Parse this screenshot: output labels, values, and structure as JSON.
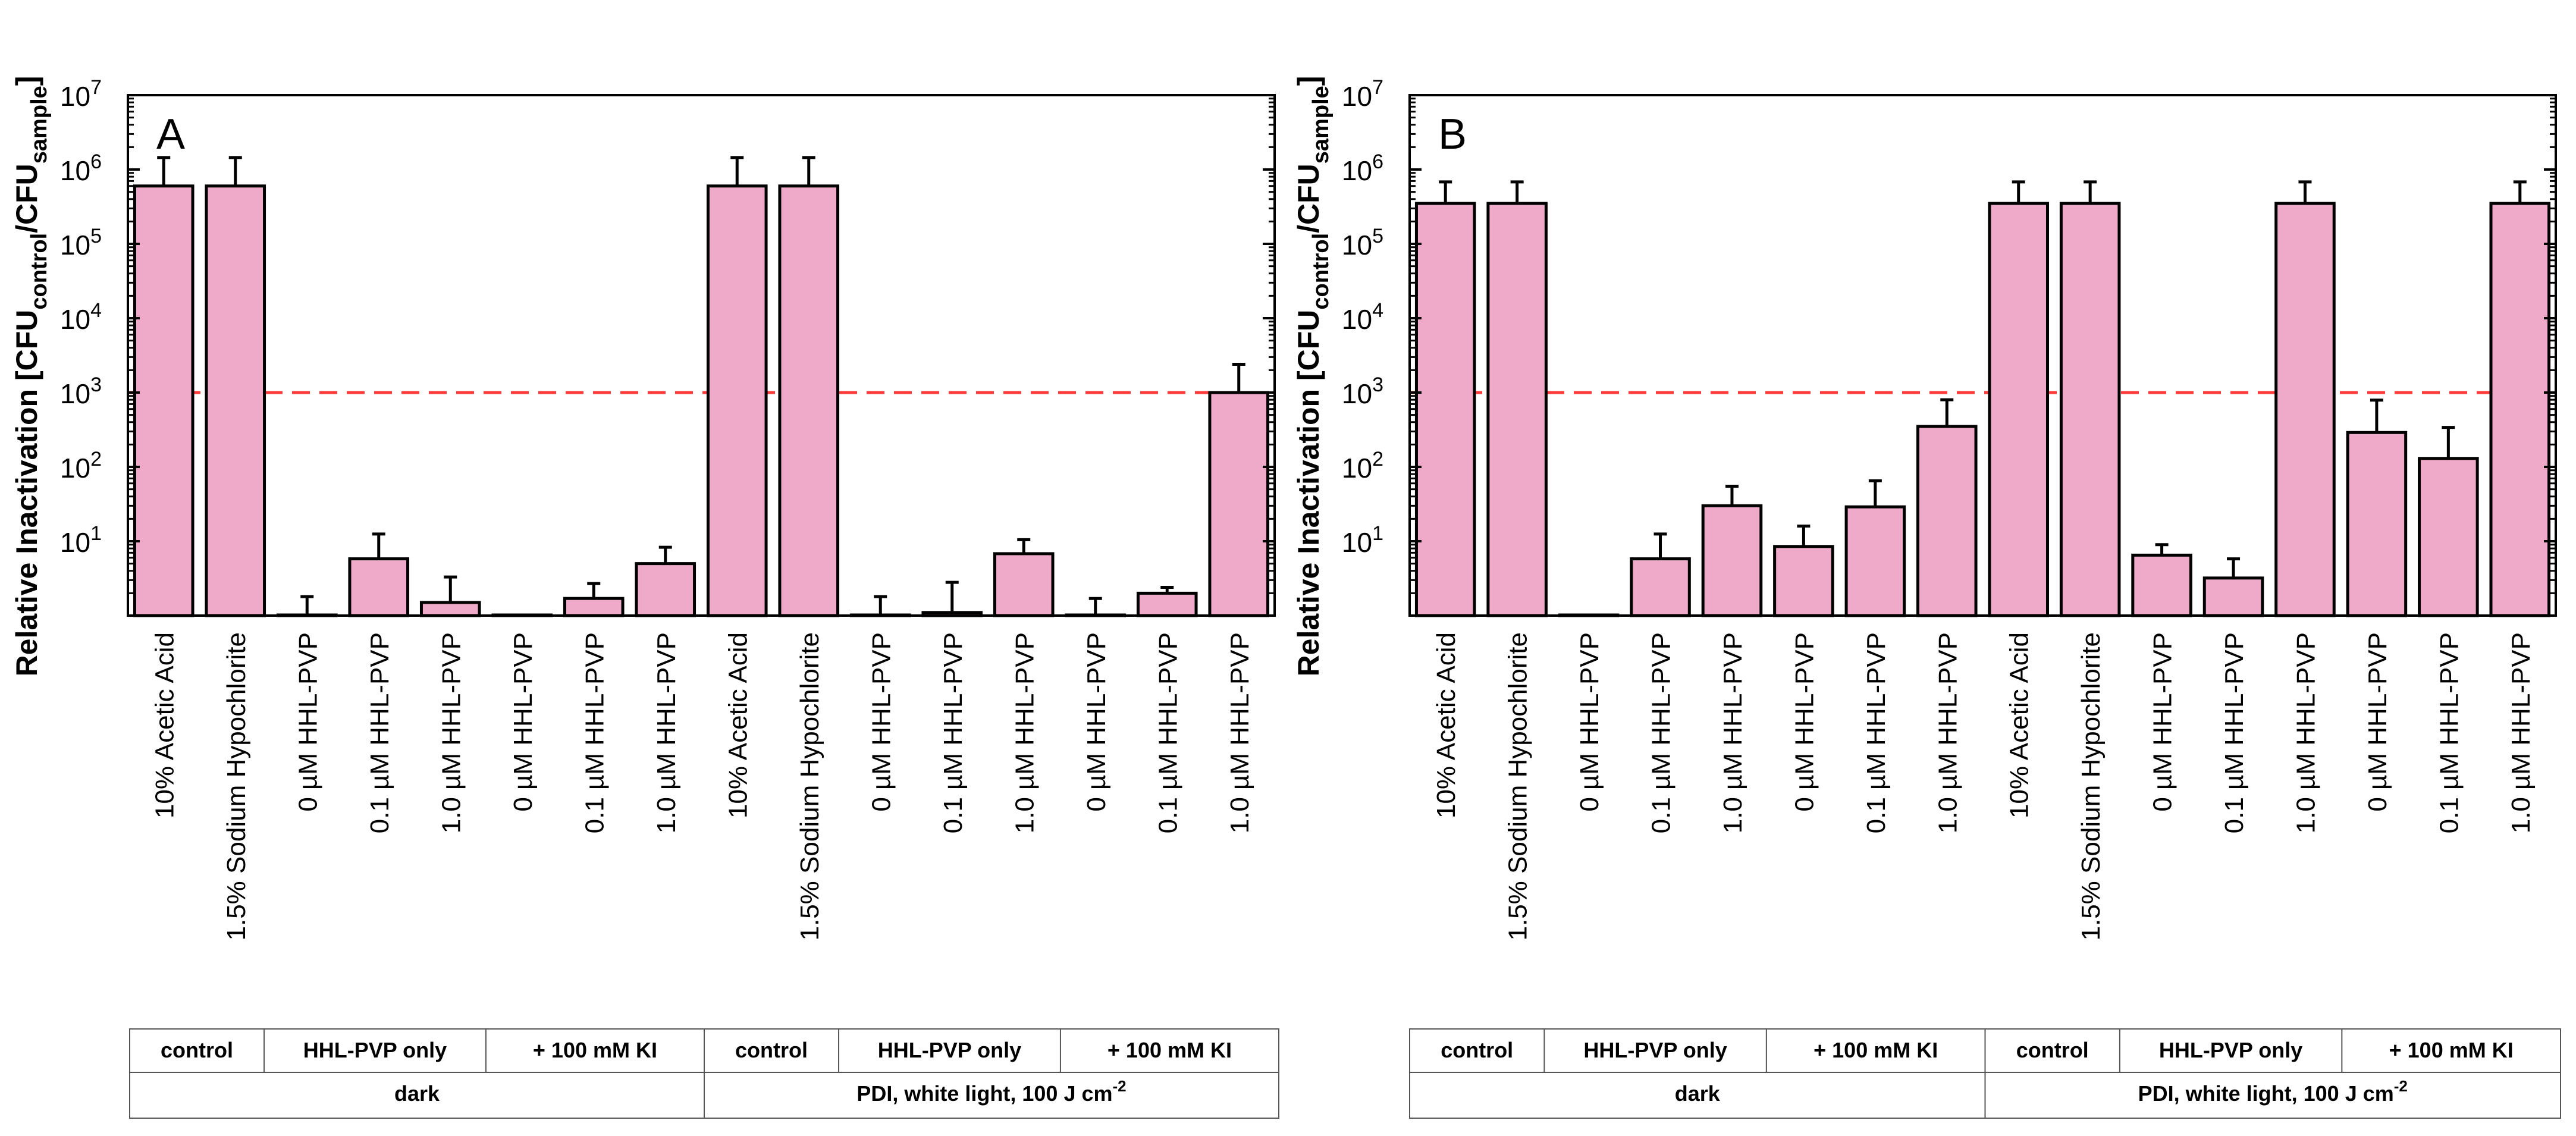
{
  "figure": {
    "y_axis_label": "Relative Inactivation [CFU",
    "y_axis_label_sub1": "control",
    "y_axis_label_mid": "/CFU",
    "y_axis_label_sub2": "sample",
    "y_axis_label_end": "]",
    "threshold_color": "#ff3b3b",
    "bar_color": "#eeaac8",
    "bar_stroke": "#000000"
  },
  "chart_data": [
    {
      "type": "bar",
      "panel_label": "A",
      "yscale": "log",
      "ylim": [
        1,
        10000000
      ],
      "y_ticks": [
        {
          "base": "10",
          "exp": "1"
        },
        {
          "base": "10",
          "exp": "2"
        },
        {
          "base": "10",
          "exp": "3"
        },
        {
          "base": "10",
          "exp": "4"
        },
        {
          "base": "10",
          "exp": "5"
        },
        {
          "base": "10",
          "exp": "6"
        },
        {
          "base": "10",
          "exp": "7"
        }
      ],
      "threshold": 1000,
      "categories": [
        "10% Acetic Acid",
        "1.5% Sodium Hypochlorite",
        "0 µM HHL-PVP",
        "0.1 µM HHL-PVP",
        "1.0 µM HHL-PVP",
        "0 µM HHL-PVP",
        "0.1 µM HHL-PVP",
        "1.0 µM HHL-PVP",
        "10% Acetic Acid",
        "1.5% Sodium Hypochlorite",
        "0 µM HHL-PVP",
        "0.1 µM HHL-PVP",
        "1.0 µM HHL-PVP",
        "0 µM HHL-PVP",
        "0.1 µM HHL-PVP",
        "1.0 µM HHL-PVP"
      ],
      "values": [
        600000,
        600000,
        1,
        5.8,
        1.5,
        1,
        1.7,
        5,
        600000,
        600000,
        1,
        1.1,
        6.8,
        1,
        2,
        1000
      ],
      "error_upper": [
        1450000,
        1450000,
        1.8,
        12.5,
        3.3,
        1,
        2.7,
        8.3,
        1450000,
        1450000,
        1.8,
        2.8,
        10.5,
        1.7,
        2.4,
        2400
      ],
      "groups": [
        {
          "row1": [
            "control",
            "HHL-PVP only",
            "+ 100 mM KI"
          ],
          "row2": "dark"
        },
        {
          "row1": [
            "control",
            "HHL-PVP only",
            "+ 100 mM KI"
          ],
          "row2": "PDI, white light, 100 J cm",
          "row2_sup": "-2"
        }
      ]
    },
    {
      "type": "bar",
      "panel_label": "B",
      "yscale": "log",
      "ylim": [
        1,
        10000000
      ],
      "y_ticks": [
        {
          "base": "10",
          "exp": "1"
        },
        {
          "base": "10",
          "exp": "2"
        },
        {
          "base": "10",
          "exp": "3"
        },
        {
          "base": "10",
          "exp": "4"
        },
        {
          "base": "10",
          "exp": "5"
        },
        {
          "base": "10",
          "exp": "6"
        },
        {
          "base": "10",
          "exp": "7"
        }
      ],
      "threshold": 1000,
      "categories": [
        "10% Acetic Acid",
        "1.5% Sodium Hypochlorite",
        "0 µM HHL-PVP",
        "0.1 µM HHL-PVP",
        "1.0 µM HHL-PVP",
        "0 µM HHL-PVP",
        "0.1 µM HHL-PVP",
        "1.0 µM HHL-PVP",
        "10% Acetic Acid",
        "1.5% Sodium Hypochlorite",
        "0 µM HHL-PVP",
        "0.1 µM HHL-PVP",
        "1.0 µM HHL-PVP",
        "0 µM HHL-PVP",
        "0.1 µM HHL-PVP",
        "1.0 µM HHL-PVP"
      ],
      "values": [
        350000,
        350000,
        1,
        5.8,
        30,
        8.5,
        29,
        350,
        350000,
        350000,
        6.5,
        3.2,
        350000,
        290,
        130,
        350000
      ],
      "error_upper": [
        680000,
        680000,
        1,
        12.5,
        55,
        16,
        65,
        800,
        680000,
        680000,
        9,
        5.8,
        680000,
        790,
        340,
        680000
      ],
      "groups": [
        {
          "row1": [
            "control",
            "HHL-PVP only",
            "+ 100 mM KI"
          ],
          "row2": "dark"
        },
        {
          "row1": [
            "control",
            "HHL-PVP only",
            "+ 100 mM KI"
          ],
          "row2": "PDI, white light, 100 J cm",
          "row2_sup": "-2"
        }
      ]
    }
  ]
}
